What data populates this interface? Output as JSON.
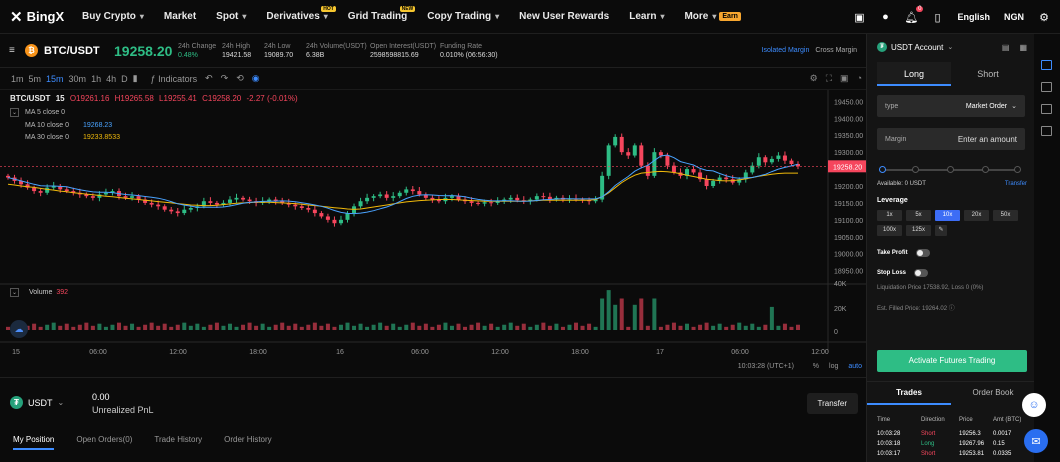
{
  "brand": {
    "name": "BingX"
  },
  "nav": {
    "items": [
      {
        "label": "Buy Crypto",
        "caret": true
      },
      {
        "label": "Market",
        "caret": false
      },
      {
        "label": "Spot",
        "caret": true
      },
      {
        "label": "Derivatives",
        "caret": true,
        "badge": "HOT"
      },
      {
        "label": "Grid Trading",
        "caret": false,
        "badge": "NEW"
      },
      {
        "label": "Copy Trading",
        "caret": true
      },
      {
        "label": "New User Rewards",
        "caret": false
      },
      {
        "label": "Learn",
        "caret": true
      },
      {
        "label": "More",
        "caret": true,
        "tag": "Earn"
      }
    ],
    "notifications": "0",
    "language": "English",
    "currency": "NGN"
  },
  "ticker": {
    "pair": "BTC/USDT",
    "last_price": "19258.20",
    "stats": [
      {
        "label": "24h Change",
        "value": "0.48%",
        "color": "#2ebd85"
      },
      {
        "label": "24h High",
        "value": "19421.58"
      },
      {
        "label": "24h Low",
        "value": "19089.70"
      },
      {
        "label": "24h Volume(USDT)",
        "value": "6.38B"
      },
      {
        "label": "Open Interest(USDT)",
        "value": "2598598815.69"
      },
      {
        "label": "Funding Rate",
        "value": "0.010%  (06:56:30)"
      }
    ],
    "margin_modes": [
      "Isolated Margin",
      "Cross Margin"
    ]
  },
  "chart_tools": {
    "timeframes": [
      "1m",
      "5m",
      "15m",
      "30m",
      "1h",
      "4h",
      "D"
    ],
    "active_timeframe": "15m",
    "indicators_label": "Indicators"
  },
  "legend": {
    "symbol": "BTC/USDT",
    "interval": "15",
    "open": "O19261.16",
    "high": "H19265.58",
    "low": "L19255.41",
    "close": "C19258.20",
    "change": "-2.27 (-0.01%)",
    "ma": [
      {
        "label": "MA 5 close 0",
        "value": "",
        "color": "#3d8cff"
      },
      {
        "label": "MA 10 close 0",
        "value": "19268.23",
        "color": "#4aa3ff"
      },
      {
        "label": "MA 30 close 0",
        "value": "19233.8533",
        "color": "#f0b90b"
      }
    ],
    "volume_label": "Volume",
    "volume_value": "392"
  },
  "chart_data": {
    "type": "candlestick",
    "y_ticks": [
      "19450.00",
      "19400.00",
      "19350.00",
      "19300.00",
      "19250.00",
      "19200.00",
      "19150.00",
      "19100.00",
      "19050.00",
      "19000.00",
      "18950.00"
    ],
    "ylim": [
      18940,
      19460
    ],
    "volume_ticks": [
      "40K",
      "20K",
      "0"
    ],
    "x_ticks": [
      "15",
      "06:00",
      "12:00",
      "18:00",
      "16",
      "06:00",
      "12:00",
      "18:00",
      "17",
      "06:00",
      "12:00"
    ],
    "last_price_label": "19258.20",
    "close_series": [
      19225,
      19215,
      19205,
      19195,
      19185,
      19180,
      19195,
      19200,
      19190,
      19185,
      19180,
      19175,
      19170,
      19165,
      19175,
      19180,
      19185,
      19170,
      19165,
      19170,
      19160,
      19150,
      19145,
      19140,
      19130,
      19125,
      19120,
      19130,
      19135,
      19140,
      19155,
      19150,
      19145,
      19150,
      19160,
      19165,
      19160,
      19155,
      19150,
      19155,
      19160,
      19155,
      19150,
      19145,
      19140,
      19135,
      19130,
      19120,
      19110,
      19100,
      19090,
      19100,
      19120,
      19140,
      19155,
      19165,
      19170,
      19175,
      19165,
      19170,
      19180,
      19190,
      19185,
      19175,
      19165,
      19160,
      19155,
      19165,
      19170,
      19160,
      19155,
      19150,
      19148,
      19152,
      19150,
      19155,
      19160,
      19165,
      19158,
      19155,
      19160,
      19170,
      19168,
      19160,
      19165,
      19160,
      19163,
      19160,
      19158,
      19155,
      19160,
      19230,
      19320,
      19345,
      19300,
      19290,
      19320,
      19260,
      19230,
      19300,
      19290,
      19260,
      19240,
      19230,
      19250,
      19240,
      19220,
      19200,
      19215,
      19225,
      19220,
      19210,
      19220,
      19240,
      19260,
      19285,
      19270,
      19280,
      19290,
      19275,
      19265,
      19258
    ],
    "ma30_series": [
      19205,
      19203,
      19200,
      19198,
      19196,
      19193,
      19190,
      19188,
      19185,
      19183,
      19180,
      19178,
      19176,
      19174,
      19172,
      19170,
      19168,
      19166,
      19164,
      19162,
      19160,
      19158,
      19156,
      19154,
      19152,
      19150,
      19148,
      19146,
      19144,
      19143,
      19142,
      19142,
      19143,
      19145,
      19147,
      19149,
      19150,
      19151,
      19152,
      19152,
      19152,
      19151,
      19150,
      19149,
      19148,
      19146,
      19144,
      19142,
      19140,
      19138,
      19136,
      19134,
      19132,
      19131,
      19132,
      19135,
      19138,
      19141,
      19144,
      19147,
      19150,
      19153,
      19155,
      19157,
      19158,
      19159,
      19160,
      19160,
      19160,
      19159,
      19158,
      19157,
      19156,
      19155,
      19155,
      19155,
      19155,
      19155,
      19155,
      19155,
      19156,
      19157,
      19158,
      19158,
      19158,
      19158,
      19158,
      19158,
      19158,
      19158,
      19160,
      19168,
      19180,
      19195,
      19210,
      19222,
      19232,
      19238,
      19240,
      19242,
      19243,
      19242,
      19240,
      19236,
      19232,
      19228,
      19224,
      19220,
      19218,
      19216,
      19215,
      19216,
      19218,
      19221,
      19225,
      19229,
      19232,
      19235,
      19237,
      19238,
      19238,
      19238
    ]
  },
  "chart_footer": {
    "time": "10:03:28 (UTC+1)",
    "options": [
      "%",
      "log",
      "auto"
    ]
  },
  "account": {
    "coin": "USDT",
    "unrealized_pnl": "0.00",
    "unrealized_label": "Unrealized PnL",
    "transfer_label": "Transfer"
  },
  "position_tabs": [
    "My Position",
    "Open Orders(0)",
    "Trade History",
    "Order History"
  ],
  "order_panel": {
    "account_label": "USDT Account",
    "tabs": [
      "Long",
      "Short"
    ],
    "type_label": "type",
    "type_value": "Market Order",
    "margin_label": "Margin",
    "margin_placeholder": "Enter an amount",
    "available": "Available: 0 USDT",
    "transfer_link": "Transfer",
    "leverage_label": "Leverage",
    "leverage_options": [
      "1x",
      "5x",
      "10x",
      "20x",
      "50x",
      "100x",
      "125x",
      "✎"
    ],
    "active_leverage": "10x",
    "take_profit": "Take Profit",
    "stop_loss": "Stop Loss",
    "liquidation": "Liquidation Price  17538.92,   Loss 0 (0%)",
    "est_filled": "Est. Filled Price:  19264.02",
    "activate_label": "Activate Futures Trading",
    "bottom_tabs": [
      "Trades",
      "Order Book"
    ],
    "trades_headers": [
      "Time",
      "Direction",
      "Price",
      "Amt (BTC)"
    ],
    "trades": [
      {
        "time": "10:03:28",
        "dir": "Short",
        "price": "19256.3",
        "amt": "0.0017"
      },
      {
        "time": "10:03:18",
        "dir": "Long",
        "price": "19267.96",
        "amt": "0.15"
      },
      {
        "time": "10:03:17",
        "dir": "Short",
        "price": "19253.81",
        "amt": "0.0335"
      }
    ]
  },
  "colors": {
    "up": "#2ebd85",
    "down": "#f6465d",
    "accent": "#3d8cff",
    "ma30": "#f0b90b",
    "ma10": "#4aa3ff"
  }
}
